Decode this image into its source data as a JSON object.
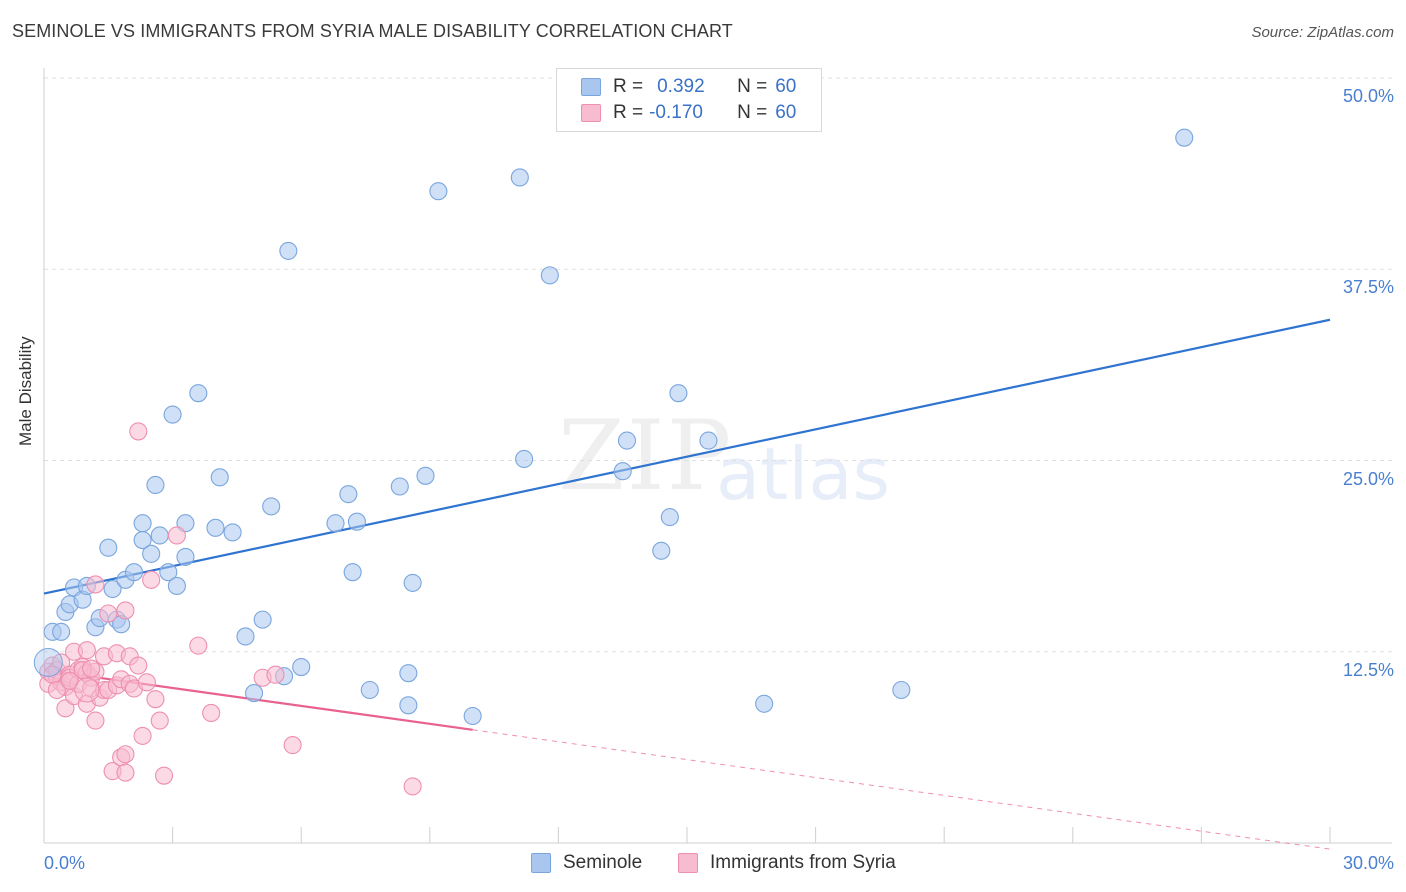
{
  "header": {
    "title": "SEMINOLE VS IMMIGRANTS FROM SYRIA MALE DISABILITY CORRELATION CHART",
    "source": "Source: ZipAtlas.com"
  },
  "watermark": {
    "zip": "ZIP",
    "atlas": "atlas"
  },
  "legend": {
    "rows": [
      {
        "r_label": "R =",
        "r_value": "0.392",
        "n_label": "N =",
        "n_value": "60",
        "color": "#a9c7ee",
        "border": "#7aa6de"
      },
      {
        "r_label": "R =",
        "r_value": "-0.170",
        "n_label": "N =",
        "n_value": "60",
        "color": "#f7bcd0",
        "border": "#ee8fb0"
      }
    ]
  },
  "bottom_legend": {
    "items": [
      {
        "label": "Seminole",
        "color": "#a9c7ee",
        "border": "#7aa6de"
      },
      {
        "label": "Immigrants from Syria",
        "color": "#f7bcd0",
        "border": "#ee8fb0"
      }
    ]
  },
  "chart_data": {
    "type": "scatter",
    "title": "SEMINOLE VS IMMIGRANTS FROM SYRIA MALE DISABILITY CORRELATION CHART",
    "xlabel": "",
    "ylabel": "Male Disability",
    "xlim": [
      0,
      30
    ],
    "ylim": [
      0,
      50
    ],
    "x_ticks": [
      "0.0%",
      "30.0%"
    ],
    "y_ticks": [
      {
        "value": 12.5,
        "label": "12.5%"
      },
      {
        "value": 25.0,
        "label": "25.0%"
      },
      {
        "value": 37.5,
        "label": "37.5%"
      },
      {
        "value": 50.0,
        "label": "50.0%"
      }
    ],
    "grid": true,
    "series": [
      {
        "name": "Seminole",
        "color": "#a9c7ee",
        "edge": "#7aa6de",
        "trend": {
          "x": [
            0,
            30
          ],
          "y": [
            16.3,
            34.2
          ],
          "color": "#2f74d0",
          "dashed_to": null
        },
        "points": [
          [
            0.2,
            13.8
          ],
          [
            0.4,
            13.8
          ],
          [
            0.5,
            15.1
          ],
          [
            0.6,
            15.6
          ],
          [
            0.7,
            16.7
          ],
          [
            0.9,
            15.9
          ],
          [
            1.0,
            16.8
          ],
          [
            1.2,
            14.1
          ],
          [
            1.3,
            14.7
          ],
          [
            1.5,
            19.3
          ],
          [
            1.6,
            16.6
          ],
          [
            1.7,
            14.6
          ],
          [
            1.8,
            14.3
          ],
          [
            1.9,
            17.2
          ],
          [
            2.1,
            17.7
          ],
          [
            2.3,
            20.9
          ],
          [
            2.3,
            19.8
          ],
          [
            2.5,
            18.9
          ],
          [
            2.6,
            23.4
          ],
          [
            2.7,
            20.1
          ],
          [
            2.9,
            17.7
          ],
          [
            3.0,
            28.0
          ],
          [
            3.1,
            16.8
          ],
          [
            3.3,
            20.9
          ],
          [
            3.3,
            18.7
          ],
          [
            3.6,
            29.4
          ],
          [
            4.0,
            20.6
          ],
          [
            4.1,
            23.9
          ],
          [
            4.4,
            20.3
          ],
          [
            4.7,
            13.5
          ],
          [
            4.9,
            9.8
          ],
          [
            5.1,
            14.6
          ],
          [
            5.3,
            22.0
          ],
          [
            5.6,
            10.9
          ],
          [
            5.7,
            38.7
          ],
          [
            6.0,
            11.5
          ],
          [
            6.8,
            20.9
          ],
          [
            7.1,
            22.8
          ],
          [
            7.2,
            17.7
          ],
          [
            7.3,
            21.0
          ],
          [
            7.6,
            10.0
          ],
          [
            8.3,
            23.3
          ],
          [
            8.5,
            9.0
          ],
          [
            8.5,
            11.1
          ],
          [
            8.6,
            17.0
          ],
          [
            8.9,
            24.0
          ],
          [
            9.2,
            42.6
          ],
          [
            10.0,
            8.3
          ],
          [
            11.1,
            43.5
          ],
          [
            11.2,
            25.1
          ],
          [
            11.8,
            37.1
          ],
          [
            13.5,
            24.3
          ],
          [
            13.6,
            26.3
          ],
          [
            14.4,
            19.1
          ],
          [
            14.6,
            21.3
          ],
          [
            14.8,
            29.4
          ],
          [
            15.5,
            26.3
          ],
          [
            16.8,
            9.1
          ],
          [
            20.0,
            10.0
          ],
          [
            26.6,
            46.1
          ]
        ]
      },
      {
        "name": "Immigrants from Syria",
        "color": "#f7bcd0",
        "edge": "#ee8fb0",
        "trend": {
          "x": [
            0,
            10.0
          ],
          "y": [
            11.3,
            7.4
          ],
          "color": "#e8618f",
          "dashed_to": [
            30,
            -0.4
          ]
        },
        "points": [
          [
            0.1,
            11.2
          ],
          [
            0.1,
            10.4
          ],
          [
            0.2,
            11.6
          ],
          [
            0.3,
            10.9
          ],
          [
            0.3,
            11.3
          ],
          [
            0.4,
            10.5
          ],
          [
            0.4,
            11.8
          ],
          [
            0.5,
            10.2
          ],
          [
            0.5,
            8.8
          ],
          [
            0.6,
            11.0
          ],
          [
            0.6,
            10.8
          ],
          [
            0.7,
            12.5
          ],
          [
            0.7,
            9.6
          ],
          [
            0.8,
            11.3
          ],
          [
            0.8,
            10.4
          ],
          [
            0.9,
            11.5
          ],
          [
            1.0,
            11.1
          ],
          [
            1.0,
            9.1
          ],
          [
            1.0,
            12.6
          ],
          [
            1.1,
            10.8
          ],
          [
            1.1,
            10.1
          ],
          [
            1.2,
            8.0
          ],
          [
            1.2,
            11.2
          ],
          [
            1.2,
            16.9
          ],
          [
            1.3,
            9.5
          ],
          [
            1.4,
            10.0
          ],
          [
            1.4,
            12.2
          ],
          [
            1.5,
            10.0
          ],
          [
            1.5,
            15.0
          ],
          [
            1.6,
            4.7
          ],
          [
            1.7,
            10.3
          ],
          [
            1.7,
            12.4
          ],
          [
            1.8,
            5.6
          ],
          [
            1.8,
            10.7
          ],
          [
            1.9,
            5.8
          ],
          [
            1.9,
            4.6
          ],
          [
            1.9,
            15.2
          ],
          [
            2.0,
            10.4
          ],
          [
            2.0,
            12.2
          ],
          [
            2.1,
            10.1
          ],
          [
            2.2,
            26.9
          ],
          [
            2.2,
            11.6
          ],
          [
            2.3,
            7.0
          ],
          [
            2.4,
            10.5
          ],
          [
            2.5,
            17.2
          ],
          [
            2.6,
            9.4
          ],
          [
            2.7,
            8.0
          ],
          [
            2.8,
            4.4
          ],
          [
            3.1,
            20.1
          ],
          [
            3.6,
            12.9
          ],
          [
            3.9,
            8.5
          ],
          [
            5.1,
            10.8
          ],
          [
            5.4,
            11.0
          ],
          [
            5.8,
            6.4
          ],
          [
            8.6,
            3.7
          ],
          [
            0.2,
            11.0
          ],
          [
            0.3,
            10.0
          ],
          [
            0.9,
            11.3
          ],
          [
            1.1,
            11.4
          ],
          [
            0.6,
            10.6
          ]
        ]
      }
    ]
  }
}
